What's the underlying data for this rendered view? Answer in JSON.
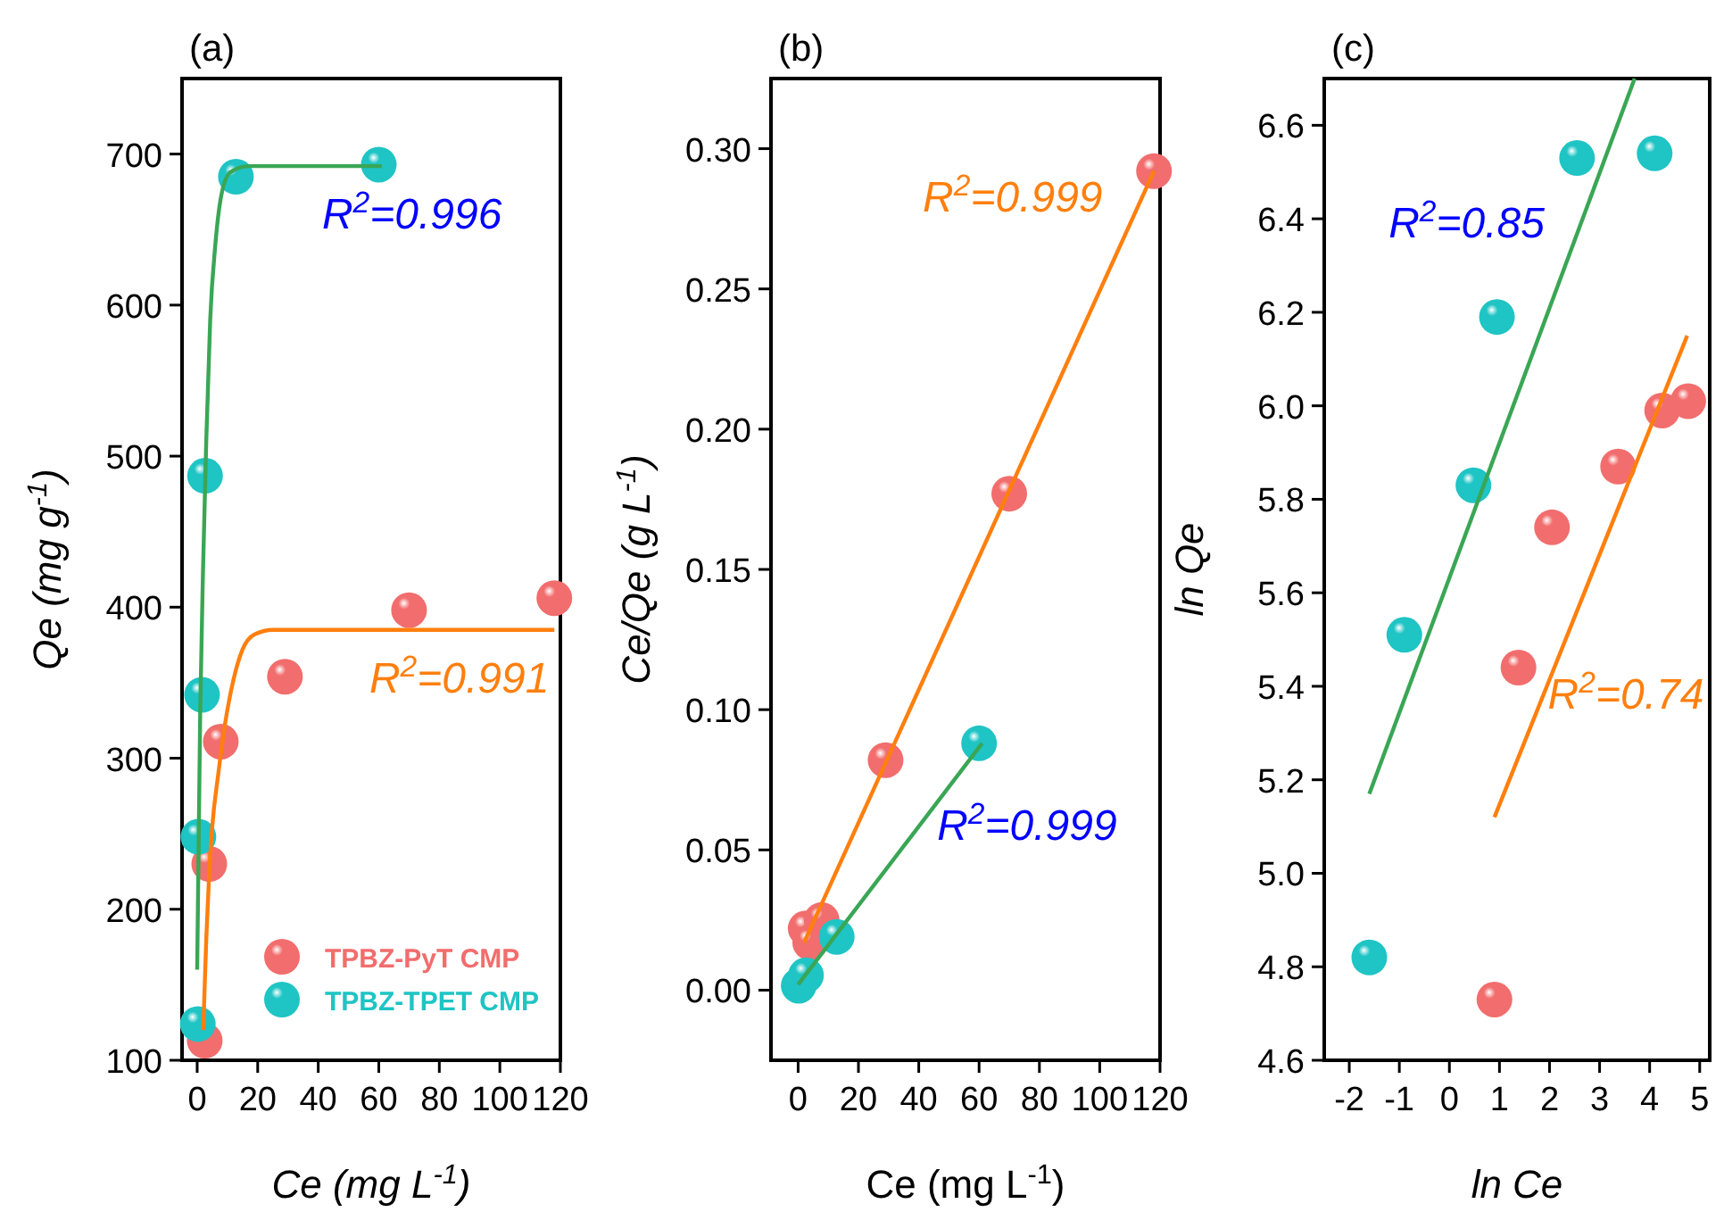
{
  "chart_data": [
    {
      "type": "scatter",
      "title": "(a)",
      "xlabel": "Ce (mg L$^{-1}$)",
      "ylabel": "Qe (mg g$^{-1}$)",
      "xlim": [
        -5,
        120
      ],
      "xticks": [
        0,
        20,
        40,
        60,
        80,
        100,
        120
      ],
      "ylim": [
        100,
        750
      ],
      "yticks": [
        100,
        200,
        300,
        400,
        500,
        600,
        700
      ],
      "grid": false,
      "legend": "bottom right",
      "marker": "circle",
      "series": [
        {
          "type": "line",
          "color": "#ff7f0e",
          "marker": "none",
          "x": [
            2,
            3,
            4,
            5,
            7,
            9,
            12,
            15,
            19,
            25,
            60,
            118
          ],
          "values": [
            120,
            180,
            225,
            255,
            290,
            320,
            352,
            372,
            382,
            385,
            385,
            385
          ]
        },
        {
          "type": "line",
          "color": "#3aa655",
          "marker": "none",
          "x": [
            0,
            1,
            2,
            3,
            4.3,
            6,
            8.2,
            11,
            17,
            61
          ],
          "values": [
            160,
            330,
            430,
            510,
            590,
            640,
            675,
            688,
            692,
            692
          ]
        },
        {
          "name": "TPBZ-PyT CMP",
          "color": "#f26d6d",
          "x": [
            2.5,
            4,
            7.8,
            29,
            70,
            118
          ],
          "values": [
            113,
            230,
            311,
            354,
            398,
            406
          ]
        },
        {
          "name": "TPBZ-TPET CMP",
          "color": "#1fc4c4",
          "x": [
            0.2,
            0.41,
            1.6,
            2.6,
            12.8,
            60
          ],
          "values": [
            124,
            248,
            342,
            487,
            685,
            693
          ]
        }
      ],
      "annotations": [
        "R$^{2}$=0.996",
        "R$^{2}$=0.991"
      ]
    },
    {
      "type": "scatter",
      "title": "(b)",
      "xlabel": "Ce (mg L$^{-1}$)",
      "ylabel": "Ce/Qe (g L$^{-1}$)",
      "xlim": [
        -9,
        120
      ],
      "xticks": [
        0,
        20,
        40,
        60,
        80,
        100,
        120
      ],
      "ylim": [
        -0.025,
        0.325
      ],
      "yticks": [
        {
          "value": 0,
          "label": "0.00"
        },
        {
          "value": 0.05,
          "label": "0.05"
        },
        {
          "value": 0.1,
          "label": "0.10"
        },
        {
          "value": 0.15,
          "label": "0.15"
        },
        {
          "value": 0.2,
          "label": "0.20"
        },
        {
          "value": 0.25,
          "label": "0.25"
        },
        {
          "value": 0.3,
          "label": "0.30"
        }
      ],
      "grid": false,
      "marker": "circle",
      "series": [
        {
          "type": "line",
          "color": "#ff7f0e",
          "marker": "none",
          "x": [
            2,
            118
          ],
          "values": [
            0.017,
            0.292
          ]
        },
        {
          "type": "line",
          "color": "#3aa655",
          "marker": "none",
          "x": [
            0,
            61
          ],
          "values": [
            0.002,
            0.088
          ]
        },
        {
          "color": "#f26d6d",
          "x": [
            2.5,
            4,
            7.8,
            29,
            70,
            118
          ],
          "values": [
            0.022,
            0.017,
            0.025,
            0.082,
            0.177,
            0.292
          ]
        },
        {
          "color": "#1fc4c4",
          "x": [
            0.2,
            2.6,
            12.8,
            60
          ],
          "values": [
            0.0016,
            0.0053,
            0.019,
            0.088
          ]
        }
      ],
      "annotations": [
        "R$^{2}$=0.999",
        "R$^{2}$=0.999"
      ]
    },
    {
      "type": "scatter",
      "title": "(c)",
      "xlabel": "ln Ce",
      "ylabel": "ln Qe",
      "xlim": [
        -2.5,
        5.2
      ],
      "xticks": [
        -2,
        -1,
        0,
        1,
        2,
        3,
        4,
        5
      ],
      "ylim": [
        4.6,
        6.7
      ],
      "yticks": [
        {
          "value": 4.6,
          "label": "4.6"
        },
        {
          "value": 4.8,
          "label": "4.8"
        },
        {
          "value": 5,
          "label": "5.0"
        },
        {
          "value": 5.2,
          "label": "5.2"
        },
        {
          "value": 5.4,
          "label": "5.4"
        },
        {
          "value": 5.6,
          "label": "5.6"
        },
        {
          "value": 5.8,
          "label": "5.8"
        },
        {
          "value": 6,
          "label": "6.0"
        },
        {
          "value": 6.2,
          "label": "6.2"
        },
        {
          "value": 6.4,
          "label": "6.4"
        },
        {
          "value": 6.6,
          "label": "6.6"
        }
      ],
      "grid": false,
      "marker": "circle",
      "series": [
        {
          "type": "line",
          "color": "#3aa655",
          "marker": "none",
          "x": [
            -1.6,
            3.7
          ],
          "values": [
            5.17,
            6.7
          ]
        },
        {
          "type": "line",
          "color": "#ff7f0e",
          "marker": "none",
          "x": [
            0.9,
            4.75
          ],
          "values": [
            5.12,
            6.15
          ]
        },
        {
          "color": "#f26d6d",
          "x": [
            0.9,
            1.38,
            2.05,
            3.37,
            4.25,
            4.77
          ],
          "values": [
            4.73,
            5.44,
            5.74,
            5.87,
            5.99,
            6.01
          ]
        },
        {
          "color": "#1fc4c4",
          "x": [
            -1.6,
            -0.9,
            0.48,
            0.95,
            2.55,
            4.1
          ],
          "values": [
            4.82,
            5.51,
            5.83,
            6.19,
            6.53,
            6.54
          ]
        }
      ],
      "annotations": [
        "R$^{2}$=0.85",
        "R$^{2}$=0.74"
      ]
    }
  ]
}
